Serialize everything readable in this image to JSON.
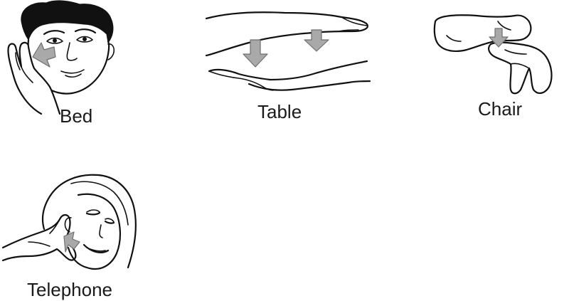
{
  "signs": [
    {
      "id": "bed",
      "label": "Bed"
    },
    {
      "id": "table",
      "label": "Table"
    },
    {
      "id": "chair",
      "label": "Chair"
    },
    {
      "id": "telephone",
      "label": "Telephone"
    }
  ],
  "colors": {
    "ink": "#111111",
    "arrow_fill": "#a9a9a9",
    "arrow_stroke": "#6f6f6f",
    "background": "#ffffff"
  }
}
